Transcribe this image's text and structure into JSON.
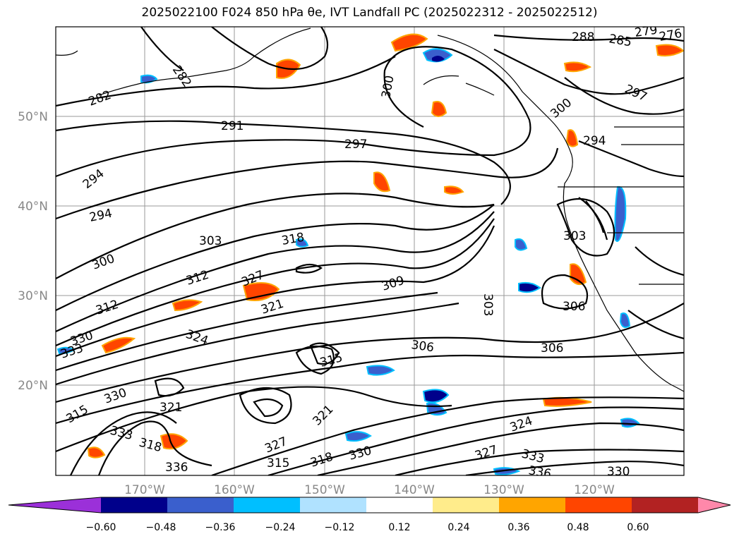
{
  "title": "2025022100 F024 850 hPa θe, IVT Landfall PC (2025022312 - 2025022512)",
  "map": {
    "lat_ticks": [
      "50°N",
      "40°N",
      "30°N",
      "20°N"
    ],
    "lon_ticks": [
      "170°W",
      "160°W",
      "150°W",
      "140°W",
      "130°W",
      "120°W"
    ],
    "contour_labels": [
      "291",
      "297",
      "294",
      "294",
      "303",
      "318",
      "300",
      "312",
      "327",
      "321",
      "312",
      "324",
      "333",
      "330",
      "315",
      "321",
      "330",
      "333",
      "318",
      "336",
      "321",
      "315",
      "327",
      "318",
      "330",
      "309",
      "306",
      "306",
      "303",
      "306",
      "324",
      "327",
      "333",
      "336",
      "330",
      "300",
      "288",
      "285",
      "279",
      "282",
      "282",
      "297",
      "300",
      "294",
      "303",
      "276",
      "315"
    ]
  },
  "colorbar": {
    "tick_labels": [
      "−0.60",
      "−0.48",
      "−0.36",
      "−0.24",
      "−0.12",
      "0.12",
      "0.24",
      "0.36",
      "0.48",
      "0.60"
    ],
    "colors": [
      "#9b30d9",
      "#00008b",
      "#3a5fcd",
      "#00bfff",
      "#b0e2ff",
      "#ffffff",
      "#ffec8b",
      "#ffa500",
      "#ff4500",
      "#b22222",
      "#ff88aa"
    ]
  }
}
